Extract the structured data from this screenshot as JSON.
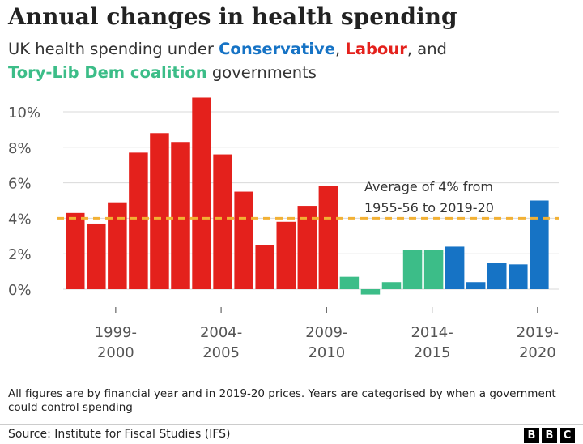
{
  "header": {
    "title": "Annual changes in health spending",
    "subtitle_prefix": "UK health spending under ",
    "conservative": "Conservative",
    "comma": ",",
    "labour": "Labour",
    "and_text": ", and",
    "coalition": "Tory-Lib Dem coalition",
    "suffix": " governments"
  },
  "colors": {
    "labour": "#e4211c",
    "coalition": "#3cbd88",
    "conservative": "#1673c5",
    "average": "#f2b134"
  },
  "chart_data": {
    "type": "bar",
    "title": "Annual changes in health spending",
    "ylim": [
      -0.5,
      10.5
    ],
    "y_ticks": [
      "0%",
      "2%",
      "4%",
      "6%",
      "8%",
      "10%"
    ],
    "y_tick_values": [
      0,
      2,
      4,
      6,
      8,
      10
    ],
    "grid": true,
    "x_tick_labels": [
      {
        "index": 2,
        "line1": "1999-",
        "line2": "2000"
      },
      {
        "index": 7,
        "line1": "2004-",
        "line2": "2005"
      },
      {
        "index": 12,
        "line1": "2009-",
        "line2": "2010"
      },
      {
        "index": 17,
        "line1": "2014-",
        "line2": "2015"
      },
      {
        "index": 22,
        "line1": "2019-",
        "line2": "2020"
      }
    ],
    "bars": [
      {
        "value": 4.3,
        "party": "labour"
      },
      {
        "value": 3.7,
        "party": "labour"
      },
      {
        "value": 4.9,
        "party": "labour"
      },
      {
        "value": 7.7,
        "party": "labour"
      },
      {
        "value": 8.8,
        "party": "labour"
      },
      {
        "value": 8.3,
        "party": "labour"
      },
      {
        "value": 10.8,
        "party": "labour"
      },
      {
        "value": 7.6,
        "party": "labour"
      },
      {
        "value": 5.5,
        "party": "labour"
      },
      {
        "value": 2.5,
        "party": "labour"
      },
      {
        "value": 3.8,
        "party": "labour"
      },
      {
        "value": 4.7,
        "party": "labour"
      },
      {
        "value": 5.8,
        "party": "labour"
      },
      {
        "value": 0.7,
        "party": "coalition"
      },
      {
        "value": -0.3,
        "party": "coalition"
      },
      {
        "value": 0.4,
        "party": "coalition"
      },
      {
        "value": 2.2,
        "party": "coalition"
      },
      {
        "value": 2.2,
        "party": "coalition"
      },
      {
        "value": 2.4,
        "party": "conservative"
      },
      {
        "value": 0.4,
        "party": "conservative"
      },
      {
        "value": 1.5,
        "party": "conservative"
      },
      {
        "value": 1.4,
        "party": "conservative"
      },
      {
        "value": 5.0,
        "party": "conservative"
      }
    ],
    "average": {
      "value": 4,
      "label_line1": "Average of 4% from",
      "label_line2": "1955-56 to 2019-20"
    }
  },
  "note": "All figures are by financial year and in 2019-20 prices. Years are categorised by when a government could control spending",
  "source": "Source: Institute for Fiscal Studies (IFS)",
  "logo": [
    "B",
    "B",
    "C"
  ]
}
